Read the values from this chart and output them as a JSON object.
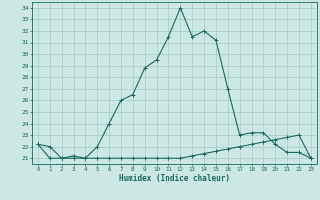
{
  "title": "",
  "xlabel": "Humidex (Indice chaleur)",
  "bg_color": "#cce8e4",
  "grid_color": "#aacfcb",
  "line_color": "#1a6b5e",
  "x": [
    0,
    1,
    2,
    3,
    4,
    5,
    6,
    7,
    8,
    9,
    10,
    11,
    12,
    13,
    14,
    15,
    16,
    17,
    18,
    19,
    20,
    21,
    22,
    23
  ],
  "y_curve": [
    22.2,
    22.0,
    21.0,
    21.2,
    21.0,
    22.0,
    24.0,
    26.0,
    26.5,
    28.8,
    29.5,
    31.5,
    34.0,
    31.5,
    32.0,
    31.2,
    27.0,
    23.0,
    23.2,
    23.2,
    22.2,
    21.5,
    21.5,
    21.0
  ],
  "y_flat": [
    22.2,
    21.0,
    21.0,
    21.0,
    21.0,
    21.0,
    21.0,
    21.0,
    21.0,
    21.0,
    21.0,
    21.0,
    21.0,
    21.2,
    21.4,
    21.6,
    21.8,
    22.0,
    22.2,
    22.4,
    22.6,
    22.8,
    23.0,
    21.0
  ],
  "ylim": [
    20.5,
    34.5
  ],
  "yticks": [
    21,
    22,
    23,
    24,
    25,
    26,
    27,
    28,
    29,
    30,
    31,
    32,
    33,
    34
  ],
  "xlim": [
    -0.5,
    23.5
  ],
  "xticks": [
    0,
    1,
    2,
    3,
    4,
    5,
    6,
    7,
    8,
    9,
    10,
    11,
    12,
    13,
    14,
    15,
    16,
    17,
    18,
    19,
    20,
    21,
    22,
    23
  ]
}
